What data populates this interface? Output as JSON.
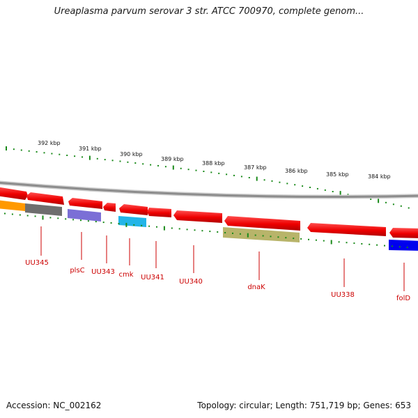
{
  "title": "Ureaplasma parvum serovar 3 str. ATCC 700970, complete genom...",
  "footer": {
    "accession": "Accession: NC_002162",
    "summary": "Topology: circular; Length: 751,719 bp; Genes: 653"
  },
  "scale_ticks": [
    "392 kbp",
    "391 kbp",
    "390 kbp",
    "389 kbp",
    "388 kbp",
    "387 kbp",
    "386 kbp",
    "385 kbp",
    "384 kbp"
  ],
  "genes": [
    {
      "id": "UU345",
      "label": "UU345",
      "color": "#ff0000"
    },
    {
      "id": "plsC",
      "label": "plsC",
      "color": "#ff0000"
    },
    {
      "id": "UU343",
      "label": "UU343",
      "color": "#ff0000"
    },
    {
      "id": "cmk",
      "label": "cmk",
      "color": "#ff0000"
    },
    {
      "id": "UU341",
      "label": "UU341",
      "color": "#ff0000"
    },
    {
      "id": "UU340",
      "label": "UU340",
      "color": "#ff0000"
    },
    {
      "id": "dnaK",
      "label": "dnaK",
      "color": "#ff0000"
    },
    {
      "id": "UU338",
      "label": "UU338",
      "color": "#ff0000"
    },
    {
      "id": "folD",
      "label": "folD",
      "color": "#ff0000"
    }
  ],
  "colors": {
    "cds": "#ff0000",
    "backbone": "#8c8c8c",
    "tick": "#1a8a1a",
    "label": "#cc0000",
    "category_orange": "#ff9900",
    "category_grey": "#6e6e6e",
    "category_purple": "#7b6fd6",
    "category_cyan": "#22b5e8",
    "category_olive": "#b8b46a",
    "category_blue": "#0000ee"
  }
}
